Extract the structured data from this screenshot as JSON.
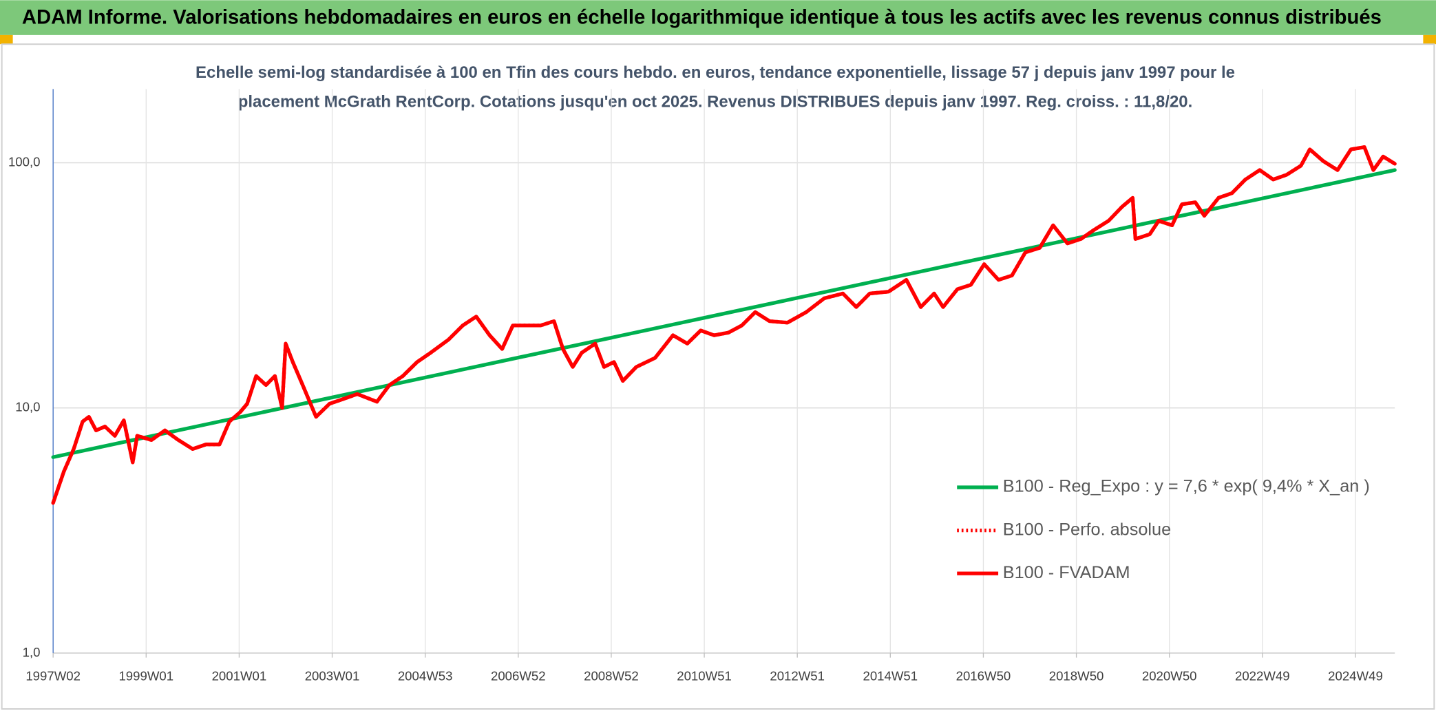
{
  "header": {
    "title": "ADAM Informe. Valorisations hebdomadaires en euros en échelle logarithmique identique à tous les actifs avec les revenus connus distribués"
  },
  "chart_data": {
    "type": "line",
    "subtitle": [
      "Echelle semi-log standardisée à 100 en Tfin des cours hebdo. en euros, tendance exponentielle, lissage 57 j depuis janv 1997 pour le",
      "placement McGrath RentCorp. Cotations jusqu'en oct 2025. Revenus DISTRIBUES depuis janv 1997. Reg. croiss. : 11,8/20."
    ],
    "log_scale": true,
    "grid": true,
    "legend_position": "right",
    "xlim": [
      0,
      1500
    ],
    "ylim": [
      1,
      200
    ],
    "xticks": [
      {
        "value": 0,
        "label": "1997W02"
      },
      {
        "value": 104,
        "label": "1999W01"
      },
      {
        "value": 208,
        "label": "2001W01"
      },
      {
        "value": 312,
        "label": "2003W01"
      },
      {
        "value": 416,
        "label": "2004W53"
      },
      {
        "value": 520,
        "label": "2006W52"
      },
      {
        "value": 624,
        "label": "2008W52"
      },
      {
        "value": 728,
        "label": "2010W51"
      },
      {
        "value": 832,
        "label": "2012W51"
      },
      {
        "value": 936,
        "label": "2014W51"
      },
      {
        "value": 1040,
        "label": "2016W50"
      },
      {
        "value": 1144,
        "label": "2018W50"
      },
      {
        "value": 1248,
        "label": "2020W50"
      },
      {
        "value": 1352,
        "label": "2022W49"
      },
      {
        "value": 1456,
        "label": "2024W49"
      }
    ],
    "yticks": [
      {
        "value": 1,
        "label": "1,0"
      },
      {
        "value": 10,
        "label": "10,0"
      },
      {
        "value": 100,
        "label": "100,0"
      }
    ],
    "series": [
      {
        "name": "B100 - Reg_Expo : y = 7,6 * exp( 9,4% *  X_an )",
        "color": "#00b050",
        "dash": "solid",
        "x": [
          0,
          1500
        ],
        "values": [
          6.3,
          93.4
        ]
      },
      {
        "name": "B100 - Perfo. absolue",
        "color": "#ff0000",
        "dash": "dotted",
        "x": [
          0,
          12,
          23,
          33,
          40,
          48,
          58,
          69,
          79,
          89,
          94,
          110,
          125,
          140,
          156,
          171,
          186,
          197,
          209,
          217,
          227,
          238,
          248,
          256,
          260,
          268,
          279,
          294,
          309,
          325,
          340,
          362,
          376,
          391,
          407,
          422,
          442,
          458,
          473,
          488,
          502,
          514,
          529,
          545,
          560,
          570,
          581,
          591,
          606,
          616,
          627,
          637,
          652,
          673,
          693,
          709,
          724,
          739,
          755,
          770,
          785,
          801,
          821,
          842,
          862,
          883,
          898,
          913,
          934,
          954,
          970,
          985,
          995,
          1011,
          1026,
          1041,
          1057,
          1072,
          1087,
          1103,
          1118,
          1134,
          1149,
          1164,
          1180,
          1195,
          1207,
          1210,
          1226,
          1236,
          1251,
          1262,
          1277,
          1287,
          1303,
          1318,
          1333,
          1349,
          1364,
          1379,
          1395,
          1405,
          1420,
          1436,
          1451,
          1466,
          1476,
          1487,
          1500
        ],
        "values": [
          4.1,
          5.5,
          6.8,
          8.8,
          9.2,
          8.1,
          8.4,
          7.7,
          8.9,
          6.0,
          7.7,
          7.4,
          8.1,
          7.4,
          6.8,
          7.1,
          7.1,
          8.8,
          9.6,
          10.4,
          13.5,
          12.4,
          13.5,
          10.0,
          18.3,
          15.4,
          12.4,
          9.2,
          10.4,
          10.9,
          11.4,
          10.6,
          12.4,
          13.5,
          15.4,
          16.8,
          19.0,
          21.7,
          23.6,
          19.8,
          17.4,
          21.7,
          21.7,
          21.7,
          22.6,
          17.4,
          14.7,
          16.8,
          18.3,
          14.7,
          15.4,
          12.9,
          14.7,
          16.0,
          19.8,
          18.3,
          20.7,
          19.8,
          20.3,
          21.7,
          24.6,
          22.6,
          22.3,
          24.6,
          28.0,
          29.3,
          25.8,
          29.3,
          29.8,
          33.3,
          25.8,
          29.3,
          25.8,
          30.5,
          31.8,
          38.6,
          33.3,
          34.7,
          43.1,
          45.0,
          55.6,
          46.9,
          48.9,
          53.3,
          58.0,
          66.1,
          72.0,
          48.9,
          51.1,
          58.0,
          55.6,
          67.8,
          69.0,
          60.8,
          72.0,
          75.2,
          85.5,
          93.4,
          85.5,
          89.3,
          97.4,
          113.5,
          101.6,
          93.4,
          113.5,
          115.9,
          93.4,
          106.1,
          99.1
        ]
      },
      {
        "name": "B100 - FVADAM",
        "color": "#ff0000",
        "dash": "solid",
        "x": [
          0,
          12,
          23,
          33,
          40,
          48,
          58,
          69,
          79,
          89,
          94,
          110,
          125,
          140,
          156,
          171,
          186,
          197,
          209,
          217,
          227,
          238,
          248,
          256,
          260,
          268,
          279,
          294,
          309,
          325,
          340,
          362,
          376,
          391,
          407,
          422,
          442,
          458,
          473,
          488,
          502,
          514,
          529,
          545,
          560,
          570,
          581,
          591,
          606,
          616,
          627,
          637,
          652,
          673,
          693,
          709,
          724,
          739,
          755,
          770,
          785,
          801,
          821,
          842,
          862,
          883,
          898,
          913,
          934,
          954,
          970,
          985,
          995,
          1011,
          1026,
          1041,
          1057,
          1072,
          1087,
          1103,
          1118,
          1134,
          1149,
          1164,
          1180,
          1195,
          1207,
          1210,
          1226,
          1236,
          1251,
          1262,
          1277,
          1287,
          1303,
          1318,
          1333,
          1349,
          1364,
          1379,
          1395,
          1405,
          1420,
          1436,
          1451,
          1466,
          1476,
          1487,
          1500
        ],
        "values": [
          4.1,
          5.5,
          6.8,
          8.8,
          9.2,
          8.1,
          8.4,
          7.7,
          8.9,
          6.0,
          7.7,
          7.4,
          8.1,
          7.4,
          6.8,
          7.1,
          7.1,
          8.8,
          9.6,
          10.4,
          13.5,
          12.4,
          13.5,
          10.0,
          18.3,
          15.4,
          12.4,
          9.2,
          10.4,
          10.9,
          11.4,
          10.6,
          12.4,
          13.5,
          15.4,
          16.8,
          19.0,
          21.7,
          23.6,
          19.8,
          17.4,
          21.7,
          21.7,
          21.7,
          22.6,
          17.4,
          14.7,
          16.8,
          18.3,
          14.7,
          15.4,
          12.9,
          14.7,
          16.0,
          19.8,
          18.3,
          20.7,
          19.8,
          20.3,
          21.7,
          24.6,
          22.6,
          22.3,
          24.6,
          28.0,
          29.3,
          25.8,
          29.3,
          29.8,
          33.3,
          25.8,
          29.3,
          25.8,
          30.5,
          31.8,
          38.6,
          33.3,
          34.7,
          43.1,
          45.0,
          55.6,
          46.9,
          48.9,
          53.3,
          58.0,
          66.1,
          72.0,
          48.9,
          51.1,
          58.0,
          55.6,
          67.8,
          69.0,
          60.8,
          72.0,
          75.2,
          85.5,
          93.4,
          85.5,
          89.3,
          97.4,
          113.5,
          101.6,
          93.4,
          113.5,
          115.9,
          93.4,
          106.1,
          99.1
        ]
      }
    ]
  }
}
